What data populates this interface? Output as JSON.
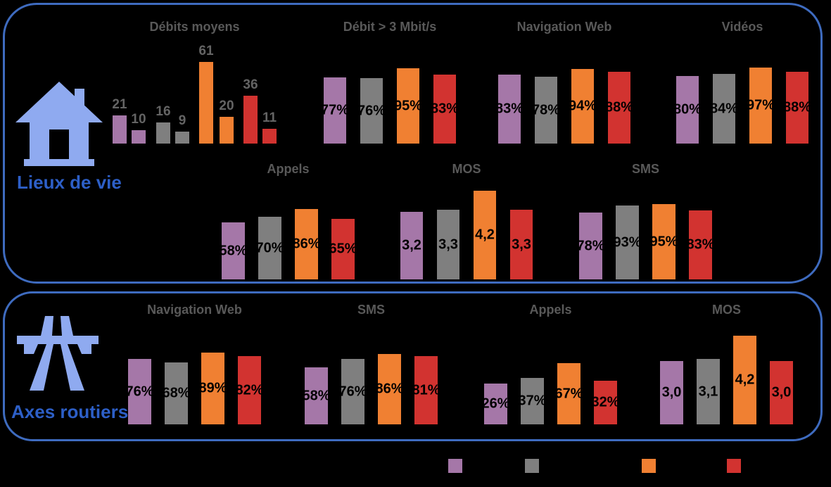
{
  "page": {
    "background": "#000000"
  },
  "colors": {
    "box_border": "#3E6BBF",
    "chart_title": "#595959",
    "bar_label_inside": "#000000",
    "bar_label_above": "#646464",
    "section_label": "#2D5FC7",
    "icon_fill": "#8FAAF0",
    "series": [
      "#A577A8",
      "#7F7F7F",
      "#F08032",
      "#D23330"
    ]
  },
  "sections": [
    {
      "label": "Lieux de vie",
      "icon": "house-icon"
    },
    {
      "label": "Axes routiers",
      "icon": "motorway-icon"
    }
  ],
  "legend": {
    "swatches": [
      {
        "color_index": 0
      },
      {
        "color_index": 1
      },
      {
        "color_index": 2
      },
      {
        "color_index": 3
      }
    ]
  },
  "chart_data": [
    {
      "section": "Lieux de vie",
      "title": "Débits moyens",
      "type": "bar",
      "ylim": [
        0,
        70
      ],
      "label_position": "above",
      "bars": [
        {
          "color_index": 0,
          "value": 21,
          "label": "21"
        },
        {
          "color_index": 0,
          "value": 10,
          "label": "10"
        },
        {
          "color_index": 1,
          "value": 16,
          "label": "16"
        },
        {
          "color_index": 1,
          "value": 9,
          "label": "9"
        },
        {
          "color_index": 2,
          "value": 61,
          "label": "61"
        },
        {
          "color_index": 2,
          "value": 20,
          "label": "20"
        },
        {
          "color_index": 3,
          "value": 36,
          "label": "36"
        },
        {
          "color_index": 3,
          "value": 11,
          "label": "11"
        }
      ]
    },
    {
      "section": "Lieux de vie",
      "title": "Débit > 3 Mbit/s",
      "type": "bar",
      "ylim": [
        0,
        100
      ],
      "label_position": "center",
      "bars": [
        {
          "color_index": 0,
          "value": 77,
          "label": "77%"
        },
        {
          "color_index": 1,
          "value": 76,
          "label": "76%"
        },
        {
          "color_index": 2,
          "value": 95,
          "label": "95%"
        },
        {
          "color_index": 3,
          "value": 83,
          "label": "83%"
        }
      ]
    },
    {
      "section": "Lieux de vie",
      "title": "Navigation Web",
      "type": "bar",
      "ylim": [
        0,
        100
      ],
      "label_position": "center",
      "bars": [
        {
          "color_index": 0,
          "value": 83,
          "label": "83%"
        },
        {
          "color_index": 1,
          "value": 78,
          "label": "78%"
        },
        {
          "color_index": 2,
          "value": 94,
          "label": "94%"
        },
        {
          "color_index": 3,
          "value": 88,
          "label": "88%"
        }
      ]
    },
    {
      "section": "Lieux de vie",
      "title": "Vidéos",
      "type": "bar",
      "ylim": [
        0,
        100
      ],
      "label_position": "center",
      "bars": [
        {
          "color_index": 0,
          "value": 80,
          "label": "80%"
        },
        {
          "color_index": 1,
          "value": 84,
          "label": "84%"
        },
        {
          "color_index": 2,
          "value": 97,
          "label": "97%"
        },
        {
          "color_index": 3,
          "value": 88,
          "label": "88%"
        }
      ]
    },
    {
      "section": "Lieux de vie",
      "title": "Appels",
      "type": "bar",
      "ylim": [
        0,
        100
      ],
      "label_position": "center",
      "bars": [
        {
          "color_index": 0,
          "value": 58,
          "label": "58%"
        },
        {
          "color_index": 1,
          "value": 70,
          "label": "70%"
        },
        {
          "color_index": 2,
          "value": 86,
          "label": "86%"
        },
        {
          "color_index": 3,
          "value": 65,
          "label": "65%"
        }
      ]
    },
    {
      "section": "Lieux de vie",
      "title": "MOS",
      "type": "bar",
      "ylim": [
        0,
        5
      ],
      "label_position": "center",
      "bars": [
        {
          "color_index": 0,
          "value": 3.2,
          "label": "3,2"
        },
        {
          "color_index": 1,
          "value": 3.3,
          "label": "3,3"
        },
        {
          "color_index": 2,
          "value": 4.2,
          "label": "4,2"
        },
        {
          "color_index": 3,
          "value": 3.3,
          "label": "3,3"
        }
      ]
    },
    {
      "section": "Lieux de vie",
      "title": "SMS",
      "type": "bar",
      "ylim": [
        0,
        100
      ],
      "label_position": "center",
      "bars": [
        {
          "color_index": 0,
          "value": 78,
          "label": "78%"
        },
        {
          "color_index": 1,
          "value": 93,
          "label": "93%"
        },
        {
          "color_index": 2,
          "value": 95,
          "label": "95%"
        },
        {
          "color_index": 3,
          "value": 83,
          "label": "83%"
        }
      ]
    },
    {
      "section": "Axes routiers",
      "title": "Navigation Web",
      "type": "bar",
      "ylim": [
        0,
        100
      ],
      "label_position": "center",
      "bars": [
        {
          "color_index": 0,
          "value": 76,
          "label": "76%"
        },
        {
          "color_index": 1,
          "value": 68,
          "label": "68%"
        },
        {
          "color_index": 2,
          "value": 89,
          "label": "89%"
        },
        {
          "color_index": 3,
          "value": 82,
          "label": "82%"
        }
      ]
    },
    {
      "section": "Axes routiers",
      "title": "SMS",
      "type": "bar",
      "ylim": [
        0,
        100
      ],
      "label_position": "center",
      "bars": [
        {
          "color_index": 0,
          "value": 58,
          "label": "58%"
        },
        {
          "color_index": 1,
          "value": 76,
          "label": "76%"
        },
        {
          "color_index": 2,
          "value": 86,
          "label": "86%"
        },
        {
          "color_index": 3,
          "value": 81,
          "label": "81%"
        }
      ]
    },
    {
      "section": "Axes routiers",
      "title": "Appels",
      "type": "bar",
      "ylim": [
        0,
        100
      ],
      "label_position": "center",
      "bars": [
        {
          "color_index": 0,
          "value": 26,
          "label": "26%"
        },
        {
          "color_index": 1,
          "value": 37,
          "label": "37%"
        },
        {
          "color_index": 2,
          "value": 67,
          "label": "67%"
        },
        {
          "color_index": 3,
          "value": 32,
          "label": "32%"
        }
      ]
    },
    {
      "section": "Axes routiers",
      "title": "MOS",
      "type": "bar",
      "ylim": [
        0,
        5
      ],
      "label_position": "center",
      "bars": [
        {
          "color_index": 0,
          "value": 3.0,
          "label": "3,0"
        },
        {
          "color_index": 1,
          "value": 3.1,
          "label": "3,1"
        },
        {
          "color_index": 2,
          "value": 4.2,
          "label": "4,2"
        },
        {
          "color_index": 3,
          "value": 3.0,
          "label": "3,0"
        }
      ]
    }
  ]
}
